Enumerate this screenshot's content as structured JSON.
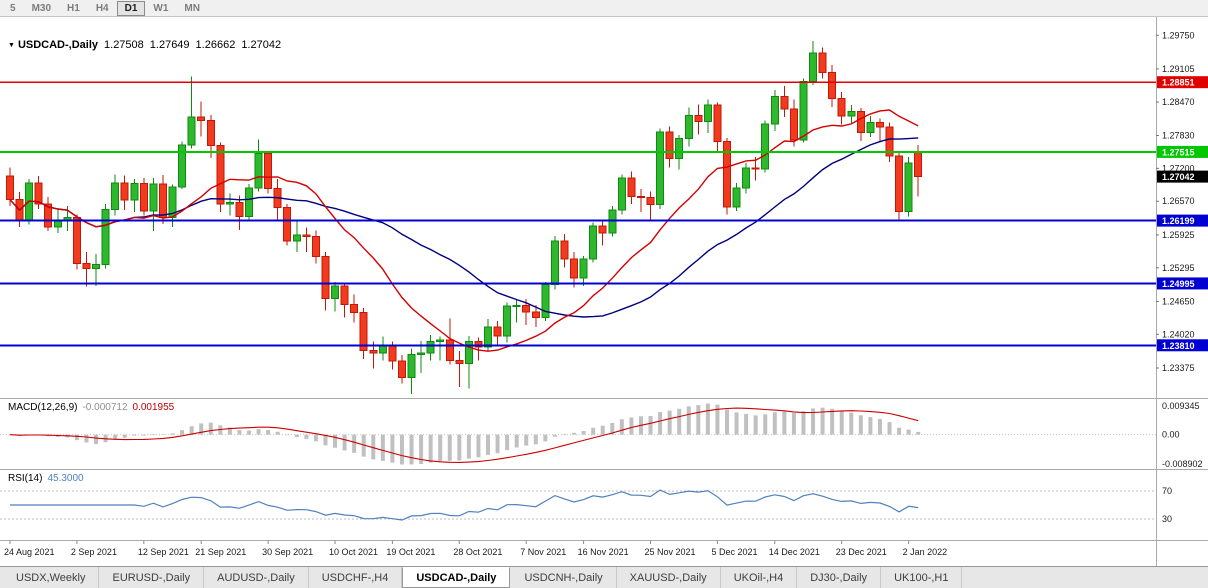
{
  "toolbar": {
    "timeframes": [
      {
        "label": "5",
        "active": false
      },
      {
        "label": "M30",
        "active": false
      },
      {
        "label": "H1",
        "active": false
      },
      {
        "label": "H4",
        "active": false
      },
      {
        "label": "D1",
        "active": true
      },
      {
        "label": "W1",
        "active": false
      },
      {
        "label": "MN",
        "active": false
      }
    ]
  },
  "chart_header": {
    "symbol": "USDCAD-,Daily",
    "open": "1.27508",
    "high": "1.27649",
    "low": "1.26662",
    "close": "1.27042"
  },
  "indicators": {
    "macd": {
      "label": "MACD(12,26,9)",
      "value_main": "-0.000712",
      "value_signal": "0.001955",
      "axis_max": "0.009345",
      "axis_zero": "0.00",
      "axis_min": "-0.008902",
      "fast": 12,
      "slow": 26,
      "signal": 9
    },
    "rsi": {
      "label": "RSI(14)",
      "value": "45.3000",
      "period": 14,
      "levels": [
        70,
        30
      ]
    }
  },
  "price_axis": {
    "range": {
      "top": 1.301,
      "bottom": 1.228
    },
    "ticks": [
      "1.29750",
      "1.29105",
      "1.28470",
      "1.27830",
      "1.27200",
      "1.26570",
      "1.25925",
      "1.25295",
      "1.24650",
      "1.24020",
      "1.23375"
    ],
    "levels": [
      {
        "price": 1.28851,
        "label": "1.28851",
        "color": "#e00000",
        "width": 1.4
      },
      {
        "price": 1.27515,
        "label": "1.27515",
        "color": "#00c800",
        "width": 2
      },
      {
        "price": 1.26199,
        "label": "1.26199",
        "color": "#0000d2",
        "width": 2
      },
      {
        "price": 1.24995,
        "label": "1.24995",
        "color": "#0000d2",
        "width": 2
      },
      {
        "price": 1.2381,
        "label": "1.23810",
        "color": "#0000d2",
        "width": 2
      }
    ],
    "current_price": {
      "price": 1.27042,
      "label": "1.27042",
      "bg": "#000000"
    }
  },
  "time_axis": {
    "labels": [
      {
        "text": "24 Aug 2021",
        "index": 0
      },
      {
        "text": "2 Sep 2021",
        "index": 7
      },
      {
        "text": "12 Sep 2021",
        "index": 14
      },
      {
        "text": "21 Sep 2021",
        "index": 20
      },
      {
        "text": "30 Sep 2021",
        "index": 27
      },
      {
        "text": "10 Oct 2021",
        "index": 34
      },
      {
        "text": "19 Oct 2021",
        "index": 40
      },
      {
        "text": "28 Oct 2021",
        "index": 47
      },
      {
        "text": "7 Nov 2021",
        "index": 54
      },
      {
        "text": "16 Nov 2021",
        "index": 60
      },
      {
        "text": "25 Nov 2021",
        "index": 67
      },
      {
        "text": "5 Dec 2021",
        "index": 74
      },
      {
        "text": "14 Dec 2021",
        "index": 80
      },
      {
        "text": "23 Dec 2021",
        "index": 87
      },
      {
        "text": "2 Jan 2022",
        "index": 94
      }
    ]
  },
  "chart_data": {
    "type": "candlestick",
    "symbol": "USDCAD",
    "timeframe": "Daily",
    "title": "USDCAD-,Daily",
    "ohlc_format": [
      "open",
      "high",
      "low",
      "close"
    ],
    "overlays": {
      "ma_fast": {
        "type": "sma",
        "period": 14
      },
      "ma_slow": {
        "type": "sma",
        "period": 30
      }
    },
    "candles": [
      [
        1.2705,
        1.2722,
        1.2648,
        1.266
      ],
      [
        1.266,
        1.2675,
        1.2608,
        1.262
      ],
      [
        1.262,
        1.27,
        1.2612,
        1.2692
      ],
      [
        1.2692,
        1.2705,
        1.2642,
        1.2652
      ],
      [
        1.2652,
        1.2665,
        1.26,
        1.2608
      ],
      [
        1.2608,
        1.264,
        1.2596,
        1.2621
      ],
      [
        1.2621,
        1.2648,
        1.26,
        1.2626
      ],
      [
        1.2626,
        1.2632,
        1.2526,
        1.2538
      ],
      [
        1.2538,
        1.256,
        1.2494,
        1.2528
      ],
      [
        1.2528,
        1.2556,
        1.2495,
        1.2536
      ],
      [
        1.2536,
        1.2652,
        1.2528,
        1.2641
      ],
      [
        1.2641,
        1.2708,
        1.263,
        1.2692
      ],
      [
        1.2692,
        1.2706,
        1.264,
        1.2659
      ],
      [
        1.2659,
        1.27,
        1.2636,
        1.2691
      ],
      [
        1.2691,
        1.2702,
        1.263,
        1.2638
      ],
      [
        1.2638,
        1.2702,
        1.26,
        1.269
      ],
      [
        1.269,
        1.2707,
        1.2613,
        1.2626
      ],
      [
        1.2626,
        1.2689,
        1.2608,
        1.2684
      ],
      [
        1.2684,
        1.2771,
        1.268,
        1.2765
      ],
      [
        1.2765,
        1.2896,
        1.2758,
        1.2818
      ],
      [
        1.2818,
        1.2848,
        1.2781,
        1.2812
      ],
      [
        1.2812,
        1.2822,
        1.274,
        1.2764
      ],
      [
        1.2764,
        1.277,
        1.2636,
        1.2652
      ],
      [
        1.2652,
        1.2672,
        1.263,
        1.2655
      ],
      [
        1.2655,
        1.2668,
        1.2602,
        1.2628
      ],
      [
        1.2628,
        1.269,
        1.262,
        1.2682
      ],
      [
        1.2682,
        1.2775,
        1.2676,
        1.2748
      ],
      [
        1.2748,
        1.2752,
        1.2672,
        1.2681
      ],
      [
        1.2681,
        1.27,
        1.2622,
        1.2645
      ],
      [
        1.2645,
        1.2652,
        1.2572,
        1.2581
      ],
      [
        1.2581,
        1.2618,
        1.256,
        1.2592
      ],
      [
        1.2592,
        1.2607,
        1.256,
        1.2589
      ],
      [
        1.2589,
        1.2601,
        1.2538,
        1.2551
      ],
      [
        1.2551,
        1.256,
        1.2448,
        1.2471
      ],
      [
        1.2471,
        1.2502,
        1.2446,
        1.2495
      ],
      [
        1.2495,
        1.25,
        1.2434,
        1.2459
      ],
      [
        1.2459,
        1.2478,
        1.2425,
        1.2444
      ],
      [
        1.2444,
        1.2452,
        1.2355,
        1.2371
      ],
      [
        1.2371,
        1.2388,
        1.2337,
        1.2366
      ],
      [
        1.2366,
        1.2398,
        1.2352,
        1.2381
      ],
      [
        1.2381,
        1.2388,
        1.2335,
        1.2351
      ],
      [
        1.2351,
        1.2362,
        1.2308,
        1.2319
      ],
      [
        1.2319,
        1.2375,
        1.2288,
        1.2363
      ],
      [
        1.2363,
        1.2389,
        1.2328,
        1.2366
      ],
      [
        1.2366,
        1.2401,
        1.2352,
        1.2388
      ],
      [
        1.2388,
        1.2398,
        1.2352,
        1.2391
      ],
      [
        1.2391,
        1.2432,
        1.2344,
        1.2352
      ],
      [
        1.2352,
        1.237,
        1.2301,
        1.2346
      ],
      [
        1.2346,
        1.2399,
        1.2298,
        1.2388
      ],
      [
        1.2388,
        1.2396,
        1.2352,
        1.2378
      ],
      [
        1.2378,
        1.2431,
        1.2369,
        1.2416
      ],
      [
        1.2416,
        1.2428,
        1.238,
        1.2399
      ],
      [
        1.2399,
        1.2463,
        1.2386,
        1.2456
      ],
      [
        1.2456,
        1.2468,
        1.2425,
        1.2457
      ],
      [
        1.2457,
        1.247,
        1.242,
        1.2445
      ],
      [
        1.2445,
        1.2458,
        1.2416,
        1.2434
      ],
      [
        1.2434,
        1.2502,
        1.2428,
        1.2497
      ],
      [
        1.2497,
        1.259,
        1.2488,
        1.2581
      ],
      [
        1.2581,
        1.2594,
        1.253,
        1.2546
      ],
      [
        1.2546,
        1.256,
        1.2492,
        1.251
      ],
      [
        1.251,
        1.2552,
        1.2495,
        1.2546
      ],
      [
        1.2546,
        1.2616,
        1.254,
        1.261
      ],
      [
        1.261,
        1.2622,
        1.2572,
        1.2596
      ],
      [
        1.2596,
        1.2648,
        1.2589,
        1.264
      ],
      [
        1.264,
        1.2708,
        1.2632,
        1.2702
      ],
      [
        1.2702,
        1.2714,
        1.2652,
        1.2666
      ],
      [
        1.2666,
        1.268,
        1.2636,
        1.2664
      ],
      [
        1.2664,
        1.2676,
        1.2622,
        1.2651
      ],
      [
        1.2651,
        1.2796,
        1.2642,
        1.279
      ],
      [
        1.279,
        1.28,
        1.2722,
        1.2739
      ],
      [
        1.2739,
        1.2784,
        1.2718,
        1.2777
      ],
      [
        1.2777,
        1.2837,
        1.2762,
        1.2821
      ],
      [
        1.2821,
        1.2842,
        1.2785,
        1.281
      ],
      [
        1.281,
        1.2852,
        1.2788,
        1.2841
      ],
      [
        1.2841,
        1.2846,
        1.2752,
        1.2771
      ],
      [
        1.2771,
        1.2778,
        1.2632,
        1.2646
      ],
      [
        1.2646,
        1.2692,
        1.2638,
        1.2682
      ],
      [
        1.2682,
        1.273,
        1.2672,
        1.2721
      ],
      [
        1.2721,
        1.2742,
        1.2697,
        1.2719
      ],
      [
        1.2719,
        1.2812,
        1.2712,
        1.2805
      ],
      [
        1.2805,
        1.287,
        1.2792,
        1.2858
      ],
      [
        1.2858,
        1.2878,
        1.2818,
        1.2834
      ],
      [
        1.2834,
        1.2852,
        1.2762,
        1.2774
      ],
      [
        1.2774,
        1.2892,
        1.277,
        1.2886
      ],
      [
        1.2886,
        1.2964,
        1.288,
        1.2941
      ],
      [
        1.2941,
        1.2952,
        1.2892,
        1.2904
      ],
      [
        1.2904,
        1.2918,
        1.2838,
        1.2854
      ],
      [
        1.2854,
        1.2866,
        1.2804,
        1.282
      ],
      [
        1.282,
        1.2841,
        1.2806,
        1.2829
      ],
      [
        1.2829,
        1.2836,
        1.2772,
        1.2789
      ],
      [
        1.2789,
        1.282,
        1.278,
        1.2808
      ],
      [
        1.2808,
        1.2816,
        1.277,
        1.2799
      ],
      [
        1.2799,
        1.2808,
        1.2732,
        1.2744
      ],
      [
        1.2744,
        1.2752,
        1.2622,
        1.2637
      ],
      [
        1.2637,
        1.2742,
        1.2628,
        1.273
      ],
      [
        1.27508,
        1.27649,
        1.26662,
        1.27042
      ]
    ]
  },
  "bottom_tabs": [
    {
      "label": "USDX,Weekly",
      "active": false
    },
    {
      "label": "EURUSD-,Daily",
      "active": false
    },
    {
      "label": "AUDUSD-,Daily",
      "active": false
    },
    {
      "label": "USDCHF-,H4",
      "active": false
    },
    {
      "label": "USDCAD-,Daily",
      "active": true
    },
    {
      "label": "USDCNH-,Daily",
      "active": false
    },
    {
      "label": "XAUUSD-,Daily",
      "active": false
    },
    {
      "label": "UKOil-,H4",
      "active": false
    },
    {
      "label": "DJ30-,Daily",
      "active": false
    },
    {
      "label": "UK100-,H1",
      "active": false
    }
  ],
  "colors": {
    "candle_up": "#2eb82e",
    "candle_up_border": "#0f8a0f",
    "candle_down": "#f23a1f",
    "candle_down_border": "#c21807",
    "ma_fast": "#d40000",
    "ma_slow": "#000080",
    "macd_hist": "#c0c0c0",
    "macd_signal": "#cc0000",
    "rsi_line": "#4f81bd",
    "current_price_bg": "#000000",
    "separator": "#aaaaaa",
    "axis_text": "#1a1a1a"
  }
}
